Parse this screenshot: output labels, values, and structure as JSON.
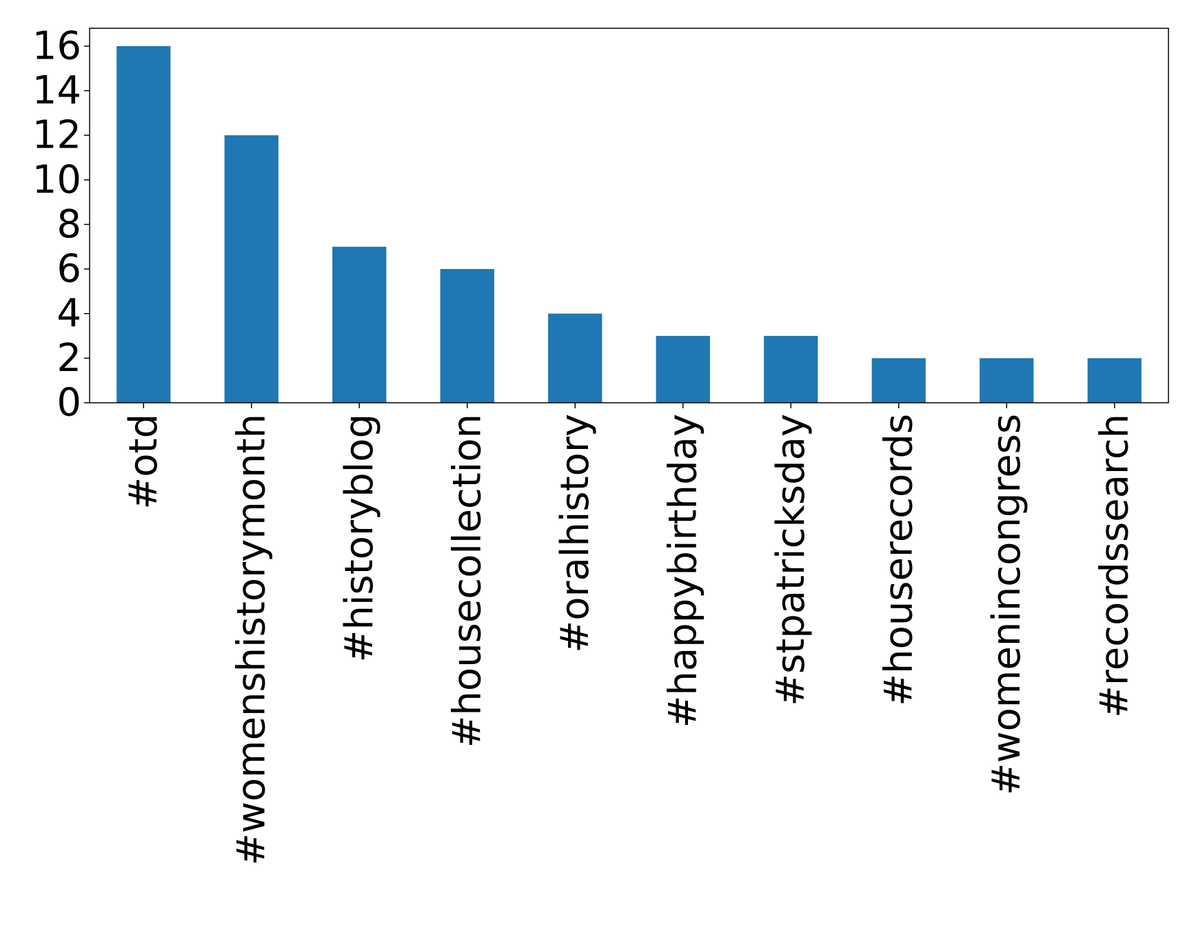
{
  "chart_data": {
    "type": "bar",
    "title": "",
    "xlabel": "",
    "ylabel": "",
    "categories": [
      "#otd",
      "#womenshistorymonth",
      "#historyblog",
      "#housecollection",
      "#oralhistory",
      "#happybirthday",
      "#stpatricksday",
      "#houserecords",
      "#womenincongress",
      "#recordssearch"
    ],
    "values": [
      16,
      12,
      7,
      6,
      4,
      3,
      3,
      2,
      2,
      2
    ],
    "ylim": [
      0,
      16.8
    ],
    "yticks": [
      0,
      2,
      4,
      6,
      8,
      10,
      12,
      14,
      16
    ],
    "grid": false,
    "legend": "none",
    "bar_color": "#1f77b4"
  }
}
